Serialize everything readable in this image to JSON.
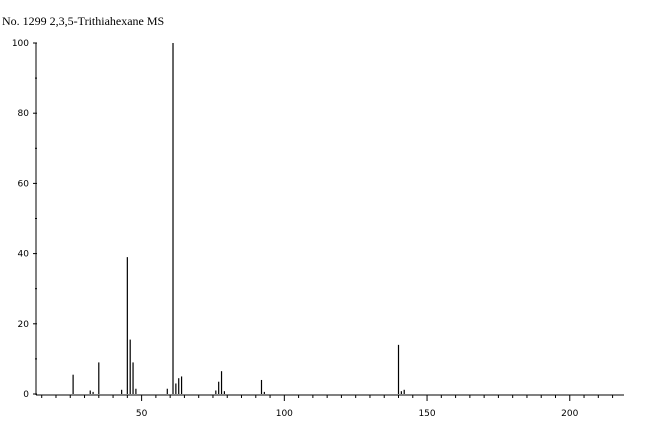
{
  "title": "No. 1299 2,3,5-Trithiahexane MS",
  "chart_data": {
    "type": "bar",
    "title": "No. 1299 2,3,5-Trithiahexane MS",
    "xlabel": "",
    "ylabel": "",
    "xlim": [
      13,
      219
    ],
    "ylim": [
      0,
      100
    ],
    "xticks": [
      50,
      100,
      150,
      200
    ],
    "yticks": [
      0,
      20,
      40,
      60,
      80,
      100
    ],
    "xtick_labels": [
      "50",
      "100",
      "150",
      "200"
    ],
    "ytick_labels": [
      "0",
      "20",
      "40",
      "60",
      "80",
      "100"
    ],
    "grid": false,
    "peaks": [
      {
        "mz": 26,
        "intensity": 5.5
      },
      {
        "mz": 32,
        "intensity": 1.0
      },
      {
        "mz": 33,
        "intensity": 0.6
      },
      {
        "mz": 35,
        "intensity": 9.0
      },
      {
        "mz": 43,
        "intensity": 1.2
      },
      {
        "mz": 45,
        "intensity": 39.0
      },
      {
        "mz": 46,
        "intensity": 15.5
      },
      {
        "mz": 47,
        "intensity": 9.0
      },
      {
        "mz": 48,
        "intensity": 1.5
      },
      {
        "mz": 59,
        "intensity": 1.5
      },
      {
        "mz": 61,
        "intensity": 100.0
      },
      {
        "mz": 62,
        "intensity": 3.0
      },
      {
        "mz": 63,
        "intensity": 4.5
      },
      {
        "mz": 64,
        "intensity": 5.0
      },
      {
        "mz": 76,
        "intensity": 1.0
      },
      {
        "mz": 77,
        "intensity": 3.5
      },
      {
        "mz": 78,
        "intensity": 6.5
      },
      {
        "mz": 79,
        "intensity": 0.8
      },
      {
        "mz": 92,
        "intensity": 4.0
      },
      {
        "mz": 93,
        "intensity": 0.6
      },
      {
        "mz": 140,
        "intensity": 14.0
      },
      {
        "mz": 141,
        "intensity": 0.8
      },
      {
        "mz": 142,
        "intensity": 1.2
      }
    ]
  }
}
